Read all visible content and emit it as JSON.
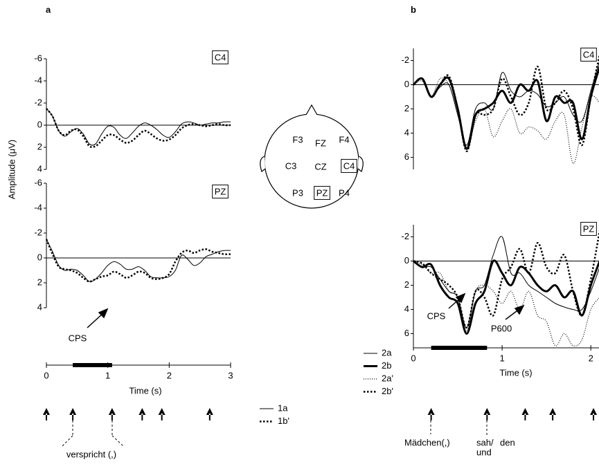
{
  "panel_labels": [
    "a",
    "b"
  ],
  "chart_data": [
    {
      "type": "line",
      "electrode": "C4",
      "ylabel": "Amplitude (μV)",
      "y_inverted": true,
      "xlim": [
        0,
        3
      ],
      "ylim": [
        -6,
        4
      ],
      "yticks": [
        -6,
        -4,
        -2,
        0,
        2,
        4
      ],
      "x": [
        0,
        0.1,
        0.2,
        0.3,
        0.4,
        0.5,
        0.6,
        0.7,
        0.8,
        0.9,
        1.0,
        1.1,
        1.2,
        1.3,
        1.4,
        1.5,
        1.6,
        1.7,
        1.8,
        1.9,
        2.0,
        2.1,
        2.2,
        2.3,
        2.4,
        2.5,
        2.6,
        2.7,
        2.8,
        2.9,
        3.0
      ],
      "series": [
        {
          "name": "1a",
          "color": "#000000",
          "line_style": "solid",
          "line_width": 1,
          "values": [
            -1.5,
            -0.8,
            0.5,
            1.0,
            0.6,
            0.3,
            0.8,
            1.7,
            1.7,
            0.8,
            0.1,
            0.2,
            0.9,
            1.2,
            0.7,
            0.1,
            -0.2,
            0.0,
            0.4,
            0.9,
            1.1,
            0.6,
            -0.1,
            -0.3,
            -0.2,
            0.0,
            -0.1,
            -0.2,
            -0.2,
            -0.3,
            -0.3
          ]
        },
        {
          "name": "1b'",
          "color": "#000000",
          "line_style": "dotted",
          "line_width": 2.5,
          "values": [
            -1.5,
            -0.8,
            0.5,
            0.9,
            0.5,
            0.4,
            1.0,
            1.9,
            1.9,
            1.4,
            0.9,
            0.9,
            1.3,
            1.6,
            1.4,
            0.9,
            0.5,
            0.8,
            1.2,
            1.4,
            1.3,
            0.9,
            0.3,
            0.0,
            -0.1,
            0.0,
            0.1,
            0.0,
            -0.1,
            0.0,
            0.0
          ]
        }
      ]
    },
    {
      "type": "line",
      "electrode": "PZ",
      "y_inverted": true,
      "xlim": [
        0,
        3
      ],
      "ylim": [
        -6,
        4
      ],
      "yticks": [
        -6,
        -4,
        -2,
        0,
        2,
        4
      ],
      "annotations": [
        {
          "text": "CPS"
        }
      ],
      "x": [
        0,
        0.1,
        0.2,
        0.3,
        0.4,
        0.5,
        0.6,
        0.7,
        0.8,
        0.9,
        1.0,
        1.1,
        1.2,
        1.3,
        1.4,
        1.5,
        1.6,
        1.7,
        1.8,
        1.9,
        2.0,
        2.1,
        2.2,
        2.3,
        2.4,
        2.5,
        2.6,
        2.7,
        2.8,
        2.9,
        3.0
      ],
      "series": [
        {
          "name": "1a",
          "color": "#000000",
          "line_style": "solid",
          "line_width": 1,
          "values": [
            -1.5,
            -0.5,
            0.6,
            1.0,
            0.9,
            1.0,
            1.4,
            1.9,
            1.7,
            1.2,
            0.6,
            0.3,
            0.5,
            0.9,
            0.9,
            0.7,
            1.0,
            1.5,
            1.6,
            1.6,
            1.5,
            1.0,
            -0.2,
            0.1,
            0.6,
            0.4,
            -0.1,
            -0.3,
            -0.5,
            -0.6,
            -0.6
          ]
        },
        {
          "name": "1b'",
          "color": "#000000",
          "line_style": "dotted",
          "line_width": 2.5,
          "values": [
            -1.5,
            -0.3,
            0.7,
            0.9,
            1.0,
            1.2,
            1.6,
            1.9,
            1.7,
            1.5,
            1.4,
            1.1,
            1.3,
            1.6,
            1.4,
            1.1,
            1.2,
            1.6,
            1.7,
            1.6,
            1.3,
            0.3,
            -0.4,
            -0.6,
            -0.4,
            -0.6,
            -0.7,
            -0.5,
            -0.4,
            -0.3,
            -0.3
          ]
        }
      ]
    },
    {
      "type": "line",
      "electrode": "C4",
      "y_inverted": true,
      "xlim": [
        0,
        2.1
      ],
      "ylim": [
        -3,
        7
      ],
      "yticks": [
        -2,
        0,
        2,
        4,
        6
      ],
      "x": [
        0,
        0.1,
        0.2,
        0.3,
        0.4,
        0.5,
        0.6,
        0.7,
        0.8,
        0.9,
        1.0,
        1.1,
        1.2,
        1.3,
        1.4,
        1.5,
        1.6,
        1.7,
        1.8,
        1.9,
        2.0,
        2.1
      ],
      "series": [
        {
          "name": "2a",
          "color": "#000000",
          "line_style": "solid",
          "line_width": 1,
          "values": [
            0,
            -0.5,
            1.0,
            0.2,
            0.0,
            2.5,
            5.0,
            2.0,
            1.5,
            2.0,
            -1.0,
            0.5,
            1.0,
            0.5,
            0.8,
            1.8,
            1.5,
            1.0,
            2.5,
            3.0,
            0.5,
            -2.0
          ]
        },
        {
          "name": "2b",
          "color": "#000000",
          "line_style": "solid",
          "line_width": 3,
          "values": [
            0,
            -0.5,
            1.0,
            0.0,
            -0.5,
            2.0,
            5.3,
            2.5,
            2.0,
            1.5,
            0.5,
            1.5,
            0.0,
            0.5,
            -0.3,
            3.0,
            1.0,
            1.5,
            1.5,
            4.5,
            1.0,
            -1.5
          ]
        },
        {
          "name": "2a'",
          "color": "#000000",
          "line_style": "fine-dotted",
          "line_width": 1.2,
          "values": [
            0,
            -0.3,
            1.0,
            -0.5,
            0.0,
            2.5,
            5.2,
            3.0,
            2.0,
            4.3,
            3.0,
            2.0,
            4.0,
            3.5,
            3.8,
            4.5,
            3.0,
            2.5,
            6.5,
            3.5,
            1.0,
            1.5
          ]
        },
        {
          "name": "2b'",
          "color": "#000000",
          "line_style": "dotted",
          "line_width": 2.5,
          "values": [
            0,
            -0.5,
            1.0,
            0.0,
            -0.7,
            2.0,
            5.5,
            2.5,
            2.5,
            2.0,
            -0.5,
            1.0,
            2.5,
            1.5,
            -1.5,
            2.0,
            1.5,
            0.5,
            2.0,
            5.0,
            1.0,
            -2.5
          ]
        }
      ]
    },
    {
      "type": "line",
      "electrode": "PZ",
      "y_inverted": true,
      "xlim": [
        0,
        2.1
      ],
      "ylim": [
        -3,
        7
      ],
      "yticks": [
        -2,
        0,
        2,
        4,
        6
      ],
      "annotations": [
        {
          "text": "CPS"
        },
        {
          "text": "P600"
        }
      ],
      "x": [
        0,
        0.1,
        0.2,
        0.3,
        0.4,
        0.5,
        0.6,
        0.7,
        0.8,
        0.9,
        1.0,
        1.1,
        1.2,
        1.3,
        1.4,
        1.5,
        1.6,
        1.7,
        1.8,
        1.9,
        2.0,
        2.1
      ],
      "series": [
        {
          "name": "2a",
          "color": "#000000",
          "line_style": "solid",
          "line_width": 1,
          "values": [
            0,
            0.5,
            0.5,
            1.5,
            2.5,
            3.0,
            5.5,
            2.5,
            2.0,
            -0.5,
            -2.0,
            1.0,
            1.0,
            2.0,
            2.5,
            3.0,
            3.5,
            3.8,
            4.0,
            4.0,
            2.5,
            0.5
          ]
        },
        {
          "name": "2b",
          "color": "#000000",
          "line_style": "solid",
          "line_width": 3,
          "values": [
            0,
            0.5,
            0.3,
            2.0,
            3.0,
            3.5,
            6.0,
            3.5,
            2.5,
            0.0,
            1.0,
            2.0,
            0.5,
            1.0,
            2.0,
            2.5,
            2.0,
            3.0,
            2.5,
            4.5,
            2.0,
            0.0
          ]
        },
        {
          "name": "2a'",
          "color": "#000000",
          "line_style": "fine-dotted",
          "line_width": 1.2,
          "values": [
            0,
            0.3,
            1.0,
            1.0,
            2.5,
            3.0,
            5.8,
            2.5,
            2.0,
            2.5,
            3.5,
            2.5,
            4.0,
            2.5,
            4.5,
            5.0,
            7.0,
            6.0,
            7.0,
            6.5,
            4.0,
            3.0
          ]
        },
        {
          "name": "2b'",
          "color": "#000000",
          "line_style": "dotted",
          "line_width": 2.5,
          "values": [
            0,
            0.2,
            1.0,
            1.5,
            2.0,
            3.0,
            5.5,
            2.5,
            3.0,
            4.5,
            1.5,
            0.5,
            -1.0,
            1.0,
            -1.5,
            0.5,
            1.0,
            -0.5,
            2.5,
            4.5,
            1.5,
            -2.5
          ]
        }
      ]
    }
  ],
  "timelines": [
    {
      "xlabel": "Time (s)",
      "xlim": [
        0,
        3
      ],
      "xticks": [
        0,
        1,
        2,
        3
      ],
      "bar": [
        0.43,
        1.07
      ],
      "arrows": [
        0,
        0.43,
        1.07,
        1.56,
        1.88,
        2.66
      ],
      "words": [
        "verspricht (,)"
      ]
    },
    {
      "xlabel": "Time (s)",
      "xlim": [
        0,
        2.1
      ],
      "xticks": [
        0,
        1,
        2
      ],
      "bar": [
        0.2,
        0.83
      ],
      "arrows": [
        0.2,
        0.83,
        1.26,
        1.57,
        2.03
      ],
      "words": [
        "Mädchen(,)",
        "sah/",
        "den",
        "und"
      ]
    }
  ],
  "head_map": {
    "electrodes": [
      {
        "label": "F3",
        "boxed": false
      },
      {
        "label": "FZ",
        "boxed": false
      },
      {
        "label": "F4",
        "boxed": false
      },
      {
        "label": "C3",
        "boxed": false
      },
      {
        "label": "CZ",
        "boxed": false
      },
      {
        "label": "C4",
        "boxed": true
      },
      {
        "label": "P3",
        "boxed": false
      },
      {
        "label": "PZ",
        "boxed": true
      },
      {
        "label": "P4",
        "boxed": false
      }
    ]
  }
}
